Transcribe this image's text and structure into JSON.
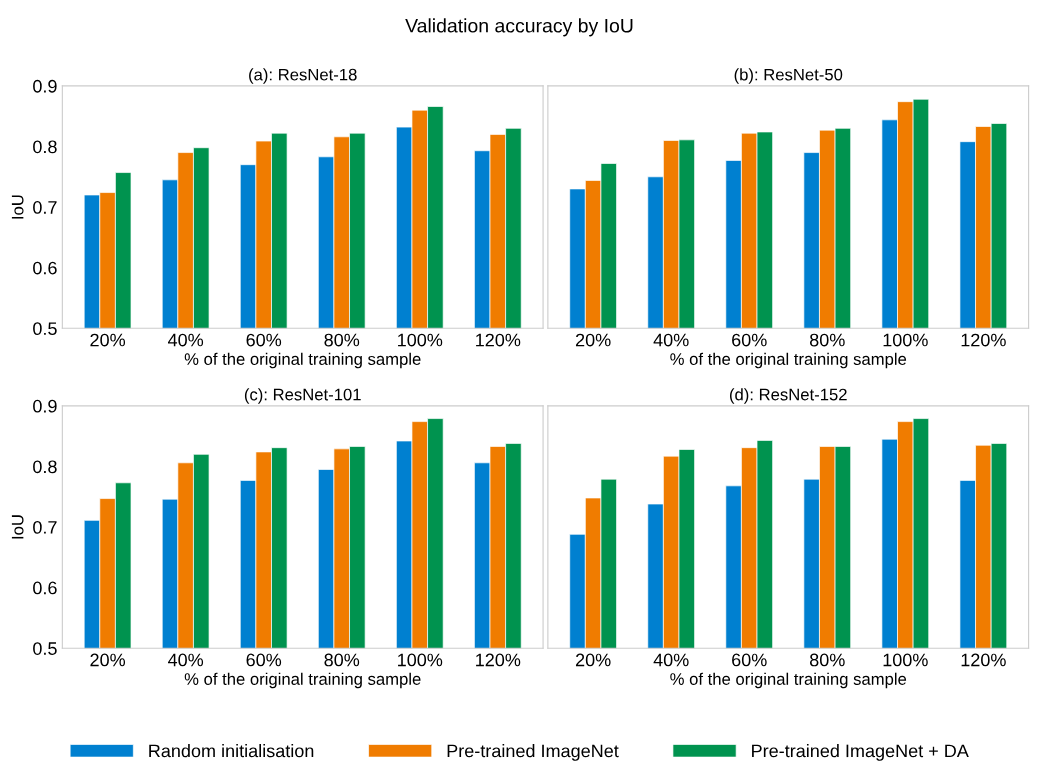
{
  "chart_data": [
    {
      "type": "bar",
      "title": "(a): ResNet-18",
      "xlabel": "% of the original training sample",
      "ylabel": "IoU",
      "annotations": [
        "Validation accuracy by IoU"
      ],
      "categories": [
        "20%",
        "40%",
        "60%",
        "80%",
        "100%",
        "120%"
      ],
      "ylim": [
        0.5,
        0.9
      ],
      "yticks": [
        0.5,
        0.6,
        0.7,
        0.8,
        0.9
      ],
      "legend": "bottom",
      "grid": false,
      "series": [
        {
          "name": "Random initialisation",
          "color": "#0080d0",
          "values": [
            0.72,
            0.745,
            0.77,
            0.783,
            0.832,
            0.793
          ]
        },
        {
          "name": "Pre-trained ImageNet",
          "color": "#f07c00",
          "values": [
            0.724,
            0.79,
            0.809,
            0.816,
            0.86,
            0.82
          ]
        },
        {
          "name": "Pre-trained ImageNet + DA",
          "color": "#00934f",
          "values": [
            0.757,
            0.798,
            0.822,
            0.822,
            0.866,
            0.83
          ]
        }
      ]
    },
    {
      "type": "bar",
      "title": "(b): ResNet-50",
      "xlabel": "% of the original training sample",
      "categories": [
        "20%",
        "40%",
        "60%",
        "80%",
        "100%",
        "120%"
      ],
      "ylim": [
        0.5,
        0.9
      ],
      "tick_labels": "x",
      "grid": false,
      "series": [
        {
          "color": "#0080d0",
          "values": [
            0.73,
            0.75,
            0.777,
            0.79,
            0.844,
            0.808
          ]
        },
        {
          "color": "#f07c00",
          "values": [
            0.744,
            0.81,
            0.822,
            0.827,
            0.874,
            0.833
          ]
        },
        {
          "color": "#00934f",
          "values": [
            0.772,
            0.811,
            0.824,
            0.83,
            0.878,
            0.838
          ]
        }
      ]
    },
    {
      "type": "bar",
      "title": "(c): ResNet-101",
      "xlabel": "% of the original training sample",
      "ylabel": "IoU",
      "categories": [
        "20%",
        "40%",
        "60%",
        "80%",
        "100%",
        "120%"
      ],
      "ylim": [
        0.5,
        0.9
      ],
      "yticks": [
        0.5,
        0.6,
        0.7,
        0.8,
        0.9
      ],
      "grid": false,
      "series": [
        {
          "color": "#0080d0",
          "values": [
            0.711,
            0.746,
            0.777,
            0.795,
            0.842,
            0.806
          ]
        },
        {
          "color": "#f07c00",
          "values": [
            0.747,
            0.806,
            0.824,
            0.829,
            0.874,
            0.833
          ]
        },
        {
          "color": "#00934f",
          "values": [
            0.773,
            0.82,
            0.831,
            0.833,
            0.879,
            0.838
          ]
        }
      ]
    },
    {
      "type": "bar",
      "title": "(d): ResNet-152",
      "xlabel": "% of the original training sample",
      "categories": [
        "20%",
        "40%",
        "60%",
        "80%",
        "100%",
        "120%"
      ],
      "ylim": [
        0.5,
        0.9
      ],
      "tick_labels": "x",
      "grid": false,
      "series": [
        {
          "color": "#0080d0",
          "values": [
            0.688,
            0.738,
            0.768,
            0.779,
            0.845,
            0.777
          ]
        },
        {
          "color": "#f07c00",
          "values": [
            0.748,
            0.817,
            0.831,
            0.833,
            0.874,
            0.835
          ]
        },
        {
          "color": "#00934f",
          "values": [
            0.779,
            0.828,
            0.843,
            0.833,
            0.879,
            0.838
          ]
        }
      ]
    }
  ]
}
